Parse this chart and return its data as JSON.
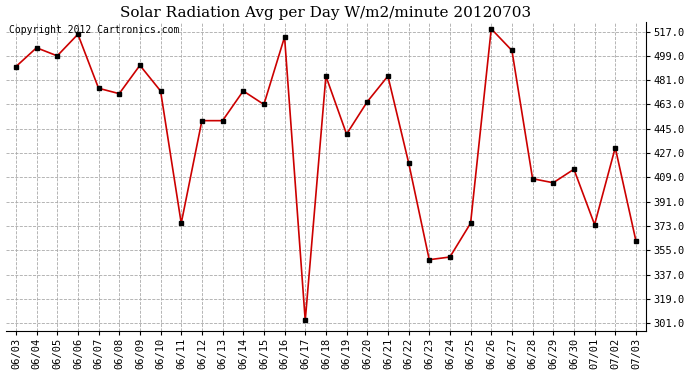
{
  "title": "Solar Radiation Avg per Day W/m2/minute 20120703",
  "copyright_text": "Copyright 2012 Cartronics.com",
  "dates": [
    "06/03",
    "06/04",
    "06/05",
    "06/06",
    "06/07",
    "06/08",
    "06/09",
    "06/10",
    "06/11",
    "06/12",
    "06/13",
    "06/14",
    "06/15",
    "06/16",
    "06/17",
    "06/18",
    "06/19",
    "06/20",
    "06/21",
    "06/22",
    "06/23",
    "06/24",
    "06/25",
    "06/26",
    "06/27",
    "06/28",
    "06/29",
    "06/30",
    "07/01",
    "07/02",
    "07/03"
  ],
  "values": [
    491,
    505,
    499,
    515,
    475,
    471,
    492,
    473,
    375,
    451,
    451,
    473,
    463,
    513,
    303,
    484,
    441,
    465,
    484,
    420,
    348,
    350,
    375,
    519,
    503,
    408,
    405,
    415,
    374,
    431,
    362
  ],
  "ylim": [
    295,
    524
  ],
  "yticks": [
    301.0,
    319.0,
    337.0,
    355.0,
    373.0,
    391.0,
    409.0,
    427.0,
    445.0,
    463.0,
    481.0,
    499.0,
    517.0
  ],
  "line_color": "#cc0000",
  "marker_color": "#000000",
  "bg_color": "#ffffff",
  "grid_color": "#aaaaaa",
  "title_fontsize": 11,
  "copyright_fontsize": 7,
  "tick_fontsize": 7.5
}
